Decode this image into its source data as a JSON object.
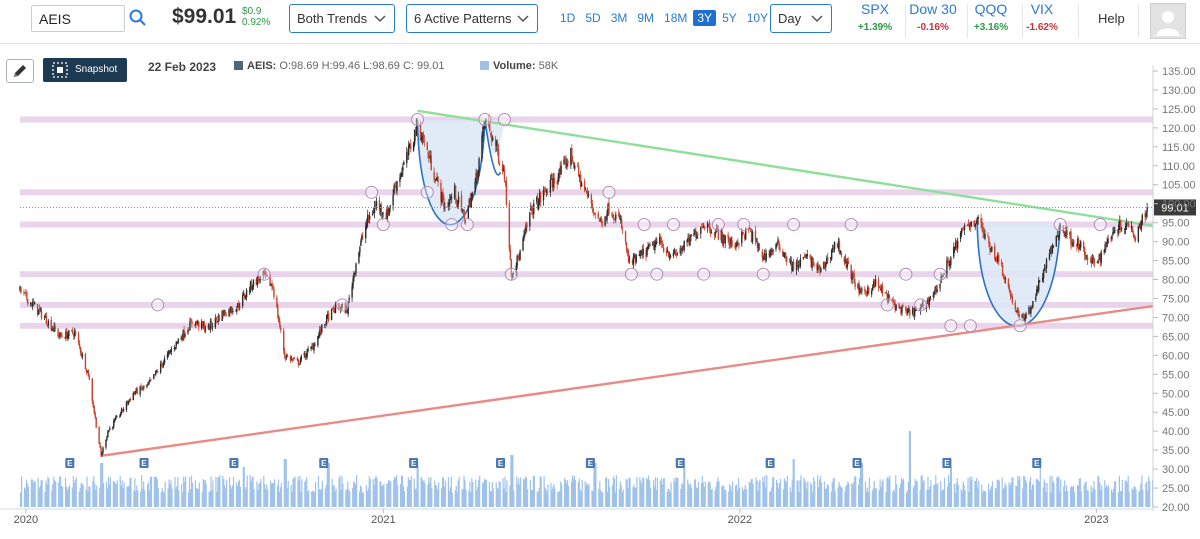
{
  "header": {
    "symbol": "AEIS",
    "price": "$99.01",
    "change_abs": "$0.9",
    "change_pct": "0.92%",
    "trend_select": "Both Trends",
    "pattern_select": "6 Active Patterns",
    "ranges": [
      "1D",
      "5D",
      "3M",
      "9M",
      "18M",
      "3Y",
      "5Y",
      "10Y"
    ],
    "active_range": "3Y",
    "interval_select": "Day",
    "help": "Help"
  },
  "indices": [
    {
      "name": "SPX",
      "change": "+1.39%",
      "dir": "pos"
    },
    {
      "name": "Dow 30",
      "change": "-0.16%",
      "dir": "neg"
    },
    {
      "name": "QQQ",
      "change": "+3.16%",
      "dir": "pos"
    },
    {
      "name": "VIX",
      "change": "-1.62%",
      "dir": "neg"
    }
  ],
  "toolbar": {
    "snapshot_label": "Snapshot"
  },
  "legend": {
    "date": "22 Feb 2023",
    "symbol": "AEIS:",
    "ohlc": "O:98.69 H:99.46 L:98.69 C: 99.01",
    "volume_label": "Volume:",
    "volume": "58K"
  },
  "colors": {
    "up": "#2a2a2a",
    "down": "#c8442e",
    "volume": "#9fc2ea",
    "support_resistance": "#e2c6e6",
    "upper_trend": "#8fdf9a",
    "lower_trend": "#e88a86",
    "cup_fill": "#dce8f6",
    "cup_stroke": "#2c72c7",
    "accent": "#1f6fd0"
  },
  "chart_data": {
    "type": "candlestick",
    "symbol": "AEIS",
    "ylim": [
      20,
      135
    ],
    "y_ticks": [
      "135.00",
      "130.00",
      "125.00",
      "120.00",
      "115.00",
      "110.00",
      "105.00",
      "100.00",
      "95.00",
      "90.00",
      "85.00",
      "80.00",
      "75.00",
      "70.00",
      "65.00",
      "60.00",
      "55.00",
      "50.00",
      "45.00",
      "40.00",
      "35.00",
      "30.00",
      "25.00",
      "20.00"
    ],
    "x_labels": [
      {
        "label": "2020",
        "date": "2020-01-01"
      },
      {
        "label": "2021",
        "date": "2021-01-01"
      },
      {
        "label": "2022",
        "date": "2022-01-01"
      },
      {
        "label": "2023",
        "date": "2023-01-01"
      }
    ],
    "x_range": [
      "2019-12-26",
      "2023-02-28"
    ],
    "last_price": 99.01,
    "last_price_label": "99.01",
    "close_path": [
      [
        "2019-12-26",
        77
      ],
      [
        "2020-01-20",
        70
      ],
      [
        "2020-02-05",
        65
      ],
      [
        "2020-02-20",
        66
      ],
      [
        "2020-03-05",
        55
      ],
      [
        "2020-03-18",
        33.5
      ],
      [
        "2020-03-25",
        40
      ],
      [
        "2020-04-05",
        44
      ],
      [
        "2020-04-20",
        50
      ],
      [
        "2020-05-05",
        52
      ],
      [
        "2020-05-20",
        58
      ],
      [
        "2020-06-05",
        64
      ],
      [
        "2020-06-20",
        69
      ],
      [
        "2020-07-05",
        67
      ],
      [
        "2020-07-20",
        71
      ],
      [
        "2020-08-05",
        73
      ],
      [
        "2020-08-20",
        79
      ],
      [
        "2020-09-01",
        81
      ],
      [
        "2020-09-10",
        78
      ],
      [
        "2020-09-22",
        60
      ],
      [
        "2020-10-05",
        58
      ],
      [
        "2020-10-20",
        62
      ],
      [
        "2020-11-05",
        70
      ],
      [
        "2020-11-15",
        73
      ],
      [
        "2020-11-25",
        72
      ],
      [
        "2020-12-05",
        86
      ],
      [
        "2020-12-15",
        95
      ],
      [
        "2020-12-25",
        100
      ],
      [
        "2021-01-05",
        97
      ],
      [
        "2021-01-12",
        104
      ],
      [
        "2021-01-25",
        112
      ],
      [
        "2021-02-05",
        121
      ],
      [
        "2021-02-12",
        116
      ],
      [
        "2021-02-22",
        108
      ],
      [
        "2021-03-05",
        99
      ],
      [
        "2021-03-15",
        103
      ],
      [
        "2021-03-25",
        96
      ],
      [
        "2021-04-05",
        105
      ],
      [
        "2021-04-15",
        122
      ],
      [
        "2021-04-25",
        116
      ],
      [
        "2021-05-05",
        108
      ],
      [
        "2021-05-12",
        82
      ],
      [
        "2021-05-20",
        86
      ],
      [
        "2021-06-01",
        98
      ],
      [
        "2021-06-15",
        103
      ],
      [
        "2021-07-01",
        108
      ],
      [
        "2021-07-12",
        113
      ],
      [
        "2021-07-22",
        106
      ],
      [
        "2021-08-05",
        98
      ],
      [
        "2021-08-12",
        95
      ],
      [
        "2021-08-20",
        99
      ],
      [
        "2021-09-01",
        95
      ],
      [
        "2021-09-10",
        84
      ],
      [
        "2021-09-25",
        87
      ],
      [
        "2021-10-10",
        90
      ],
      [
        "2021-10-25",
        86
      ],
      [
        "2021-11-10",
        90
      ],
      [
        "2021-11-25",
        95
      ],
      [
        "2021-12-10",
        92
      ],
      [
        "2021-12-25",
        89
      ],
      [
        "2022-01-10",
        93
      ],
      [
        "2022-01-25",
        86
      ],
      [
        "2022-02-10",
        89
      ],
      [
        "2022-02-25",
        83
      ],
      [
        "2022-03-10",
        86
      ],
      [
        "2022-03-25",
        82
      ],
      [
        "2022-04-10",
        90
      ],
      [
        "2022-04-20",
        84
      ],
      [
        "2022-05-05",
        76
      ],
      [
        "2022-05-20",
        79
      ],
      [
        "2022-06-05",
        74
      ],
      [
        "2022-06-20",
        71
      ],
      [
        "2022-07-05",
        72
      ],
      [
        "2022-07-20",
        77
      ],
      [
        "2022-08-05",
        86
      ],
      [
        "2022-08-20",
        94
      ],
      [
        "2022-09-01",
        96
      ],
      [
        "2022-09-12",
        90
      ],
      [
        "2022-09-25",
        84
      ],
      [
        "2022-10-05",
        76
      ],
      [
        "2022-10-15",
        69
      ],
      [
        "2022-10-25",
        72
      ],
      [
        "2022-11-05",
        80
      ],
      [
        "2022-11-15",
        87
      ],
      [
        "2022-11-25",
        94
      ],
      [
        "2022-12-05",
        91
      ],
      [
        "2022-12-15",
        89
      ],
      [
        "2022-12-25",
        84
      ],
      [
        "2023-01-05",
        86
      ],
      [
        "2023-01-18",
        93
      ],
      [
        "2023-02-01",
        95
      ],
      [
        "2023-02-10",
        92
      ],
      [
        "2023-02-22",
        99.01
      ]
    ],
    "volume_scale_max": 1.0,
    "volume_spikes": [
      [
        "2020-03-18",
        0.55
      ],
      [
        "2020-08-10",
        0.5
      ],
      [
        "2020-09-22",
        0.6
      ],
      [
        "2020-11-05",
        0.55
      ],
      [
        "2021-02-05",
        0.5
      ],
      [
        "2021-05-12",
        0.65
      ],
      [
        "2021-08-05",
        0.55
      ],
      [
        "2021-11-05",
        0.5
      ],
      [
        "2022-02-25",
        0.6
      ],
      [
        "2022-05-05",
        0.55
      ],
      [
        "2022-06-24",
        0.95
      ],
      [
        "2022-08-05",
        0.5
      ],
      [
        "2022-11-05",
        0.55
      ]
    ],
    "support_resistance_levels": [
      122.2,
      103,
      94.5,
      81.4,
      73.3,
      67.8
    ],
    "trendlines": [
      {
        "name": "upper",
        "points": [
          [
            "2021-02-05",
            124.5
          ],
          [
            "2023-02-28",
            94.2
          ]
        ]
      },
      {
        "name": "lower",
        "points": [
          [
            "2020-03-18",
            33.5
          ],
          [
            "2023-02-28",
            73
          ]
        ]
      }
    ],
    "cup_patterns": [
      {
        "start": "2021-02-05",
        "bottom": "2021-03-25",
        "end": "2021-04-15",
        "top": 122,
        "low": 94.5,
        "handle_end": "2021-05-05",
        "handle_low": 107
      },
      {
        "start": "2022-09-01",
        "bottom": "2022-10-15",
        "end": "2022-11-25",
        "top": 95,
        "low": 67.8
      }
    ],
    "pivot_markers": [
      [
        "2020-05-15",
        73.3
      ],
      [
        "2020-09-01",
        81.4
      ],
      [
        "2020-11-20",
        73.3
      ],
      [
        "2020-12-20",
        103
      ],
      [
        "2021-01-01",
        94.5
      ],
      [
        "2021-02-05",
        122.2
      ],
      [
        "2021-02-15",
        103
      ],
      [
        "2021-03-12",
        94.5
      ],
      [
        "2021-03-28",
        94.5
      ],
      [
        "2021-04-15",
        122.2
      ],
      [
        "2021-05-05",
        122.2
      ],
      [
        "2021-05-12",
        81.4
      ],
      [
        "2021-08-20",
        103
      ],
      [
        "2021-09-12",
        81.4
      ],
      [
        "2021-09-25",
        94.5
      ],
      [
        "2021-10-08",
        81.4
      ],
      [
        "2021-10-25",
        94.5
      ],
      [
        "2021-11-25",
        81.4
      ],
      [
        "2021-12-10",
        94.5
      ],
      [
        "2022-01-05",
        94.5
      ],
      [
        "2022-01-25",
        81.4
      ],
      [
        "2022-02-25",
        94.5
      ],
      [
        "2022-04-25",
        94.5
      ],
      [
        "2022-06-01",
        73.3
      ],
      [
        "2022-06-20",
        81.4
      ],
      [
        "2022-07-05",
        73.3
      ],
      [
        "2022-07-25",
        81.4
      ],
      [
        "2022-08-05",
        67.8
      ],
      [
        "2022-08-25",
        67.8
      ],
      [
        "2022-10-15",
        67.8
      ],
      [
        "2022-11-25",
        94.5
      ],
      [
        "2023-01-05",
        94.5
      ]
    ],
    "earnings_markers": [
      "2020-02-15",
      "2020-05-01",
      "2020-08-01",
      "2020-11-01",
      "2021-02-01",
      "2021-05-01",
      "2021-08-01",
      "2021-11-01",
      "2022-02-01",
      "2022-05-01",
      "2022-08-01",
      "2022-11-01"
    ],
    "earnings_label": "E",
    "grid": false
  }
}
